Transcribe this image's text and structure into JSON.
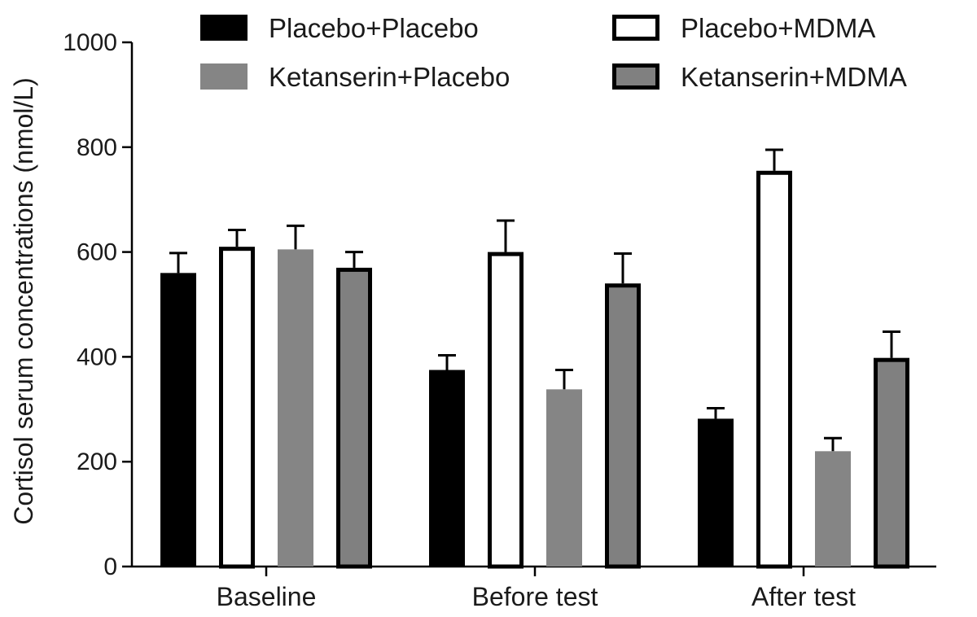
{
  "chart_data": {
    "type": "bar",
    "title": "",
    "xlabel": "",
    "ylabel": "Cortisol serum concentrations (nmol/L)",
    "ylim": [
      0,
      1000
    ],
    "yticks": [
      0,
      200,
      400,
      600,
      800,
      1000
    ],
    "categories": [
      "Baseline",
      "Before test",
      "After test"
    ],
    "legend_position": "top",
    "error_bars": "upper only",
    "series": [
      {
        "name": "Placebo+Placebo",
        "fill": "#000000",
        "stroke": "#000000",
        "values": [
          560,
          375,
          282
        ],
        "errors": [
          38,
          28,
          20
        ]
      },
      {
        "name": "Placebo+MDMA",
        "fill": "#ffffff",
        "stroke": "#000000",
        "values": [
          610,
          600,
          755
        ],
        "errors": [
          32,
          60,
          40
        ]
      },
      {
        "name": "Ketanserin+Placebo",
        "fill": "#858585",
        "stroke": "#858585",
        "values": [
          605,
          338,
          220
        ],
        "errors": [
          45,
          37,
          25
        ]
      },
      {
        "name": "Ketanserin+MDMA",
        "fill": "#808080",
        "stroke": "#000000",
        "values": [
          570,
          540,
          398
        ],
        "errors": [
          30,
          57,
          50
        ]
      }
    ]
  }
}
